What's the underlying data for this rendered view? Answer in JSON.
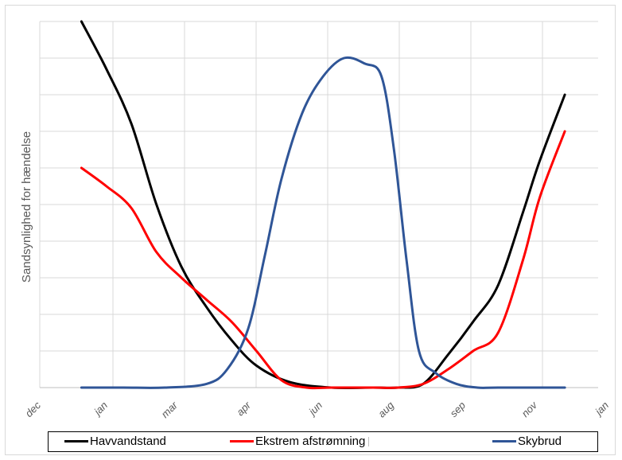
{
  "chart_data": {
    "type": "line",
    "title": "",
    "ylabel": "Sandsynlighed for hændelse",
    "xlabel": "",
    "x_ticks": [
      "dec",
      "jan",
      "mar",
      "apr",
      "jun",
      "aug",
      "sep",
      "nov",
      "jan"
    ],
    "x_range_months": [
      0,
      13.4
    ],
    "ylim": [
      0,
      10
    ],
    "grid": true,
    "legend_position": "bottom",
    "series": [
      {
        "name": "Havvandstand",
        "color": "#000000",
        "x": [
          1.0,
          1.6,
          2.2,
          2.8,
          3.4,
          4.0,
          4.6,
          5.2,
          6.0,
          7.0,
          8.0,
          8.6,
          9.2,
          9.8,
          10.4,
          11.0,
          11.6,
          12.0,
          12.6
        ],
        "y": [
          10.0,
          8.7,
          7.2,
          5.0,
          3.3,
          2.2,
          1.3,
          0.6,
          0.15,
          0.0,
          0.0,
          0.0,
          0.1,
          0.9,
          1.8,
          2.8,
          4.8,
          6.2,
          8.0
        ]
      },
      {
        "name": "Ekstrem afstrømning",
        "color": "#ff0000",
        "x": [
          1.0,
          1.6,
          2.2,
          2.8,
          3.4,
          4.0,
          4.6,
          5.2,
          5.8,
          6.4,
          7.0,
          8.0,
          8.6,
          9.2,
          9.8,
          10.4,
          11.0,
          11.6,
          12.0,
          12.6
        ],
        "y": [
          6.0,
          5.5,
          4.9,
          3.7,
          3.0,
          2.4,
          1.8,
          1.0,
          0.2,
          0.0,
          0.0,
          0.0,
          0.0,
          0.1,
          0.5,
          1.0,
          1.5,
          3.5,
          5.2,
          7.0
        ]
      },
      {
        "name": "Skybrud",
        "color": "#2f5597",
        "x": [
          1.0,
          2.0,
          3.0,
          4.0,
          4.5,
          5.0,
          5.4,
          5.8,
          6.3,
          6.8,
          7.3,
          7.8,
          8.2,
          8.5,
          8.8,
          9.1,
          9.5,
          10.0,
          10.5,
          11.0,
          12.6
        ],
        "y": [
          0.0,
          0.0,
          0.0,
          0.1,
          0.5,
          1.6,
          3.6,
          5.7,
          7.5,
          8.5,
          9.0,
          8.85,
          8.5,
          6.5,
          3.5,
          1.0,
          0.4,
          0.1,
          0.0,
          0.0,
          0.0
        ]
      }
    ]
  },
  "legend": {
    "items": [
      {
        "label": "Havvandstand",
        "color": "#000000"
      },
      {
        "label": "Ekstrem afstrømning",
        "color": "#ff0000"
      },
      {
        "label": "Skybrud",
        "color": "#2f5597"
      }
    ]
  }
}
